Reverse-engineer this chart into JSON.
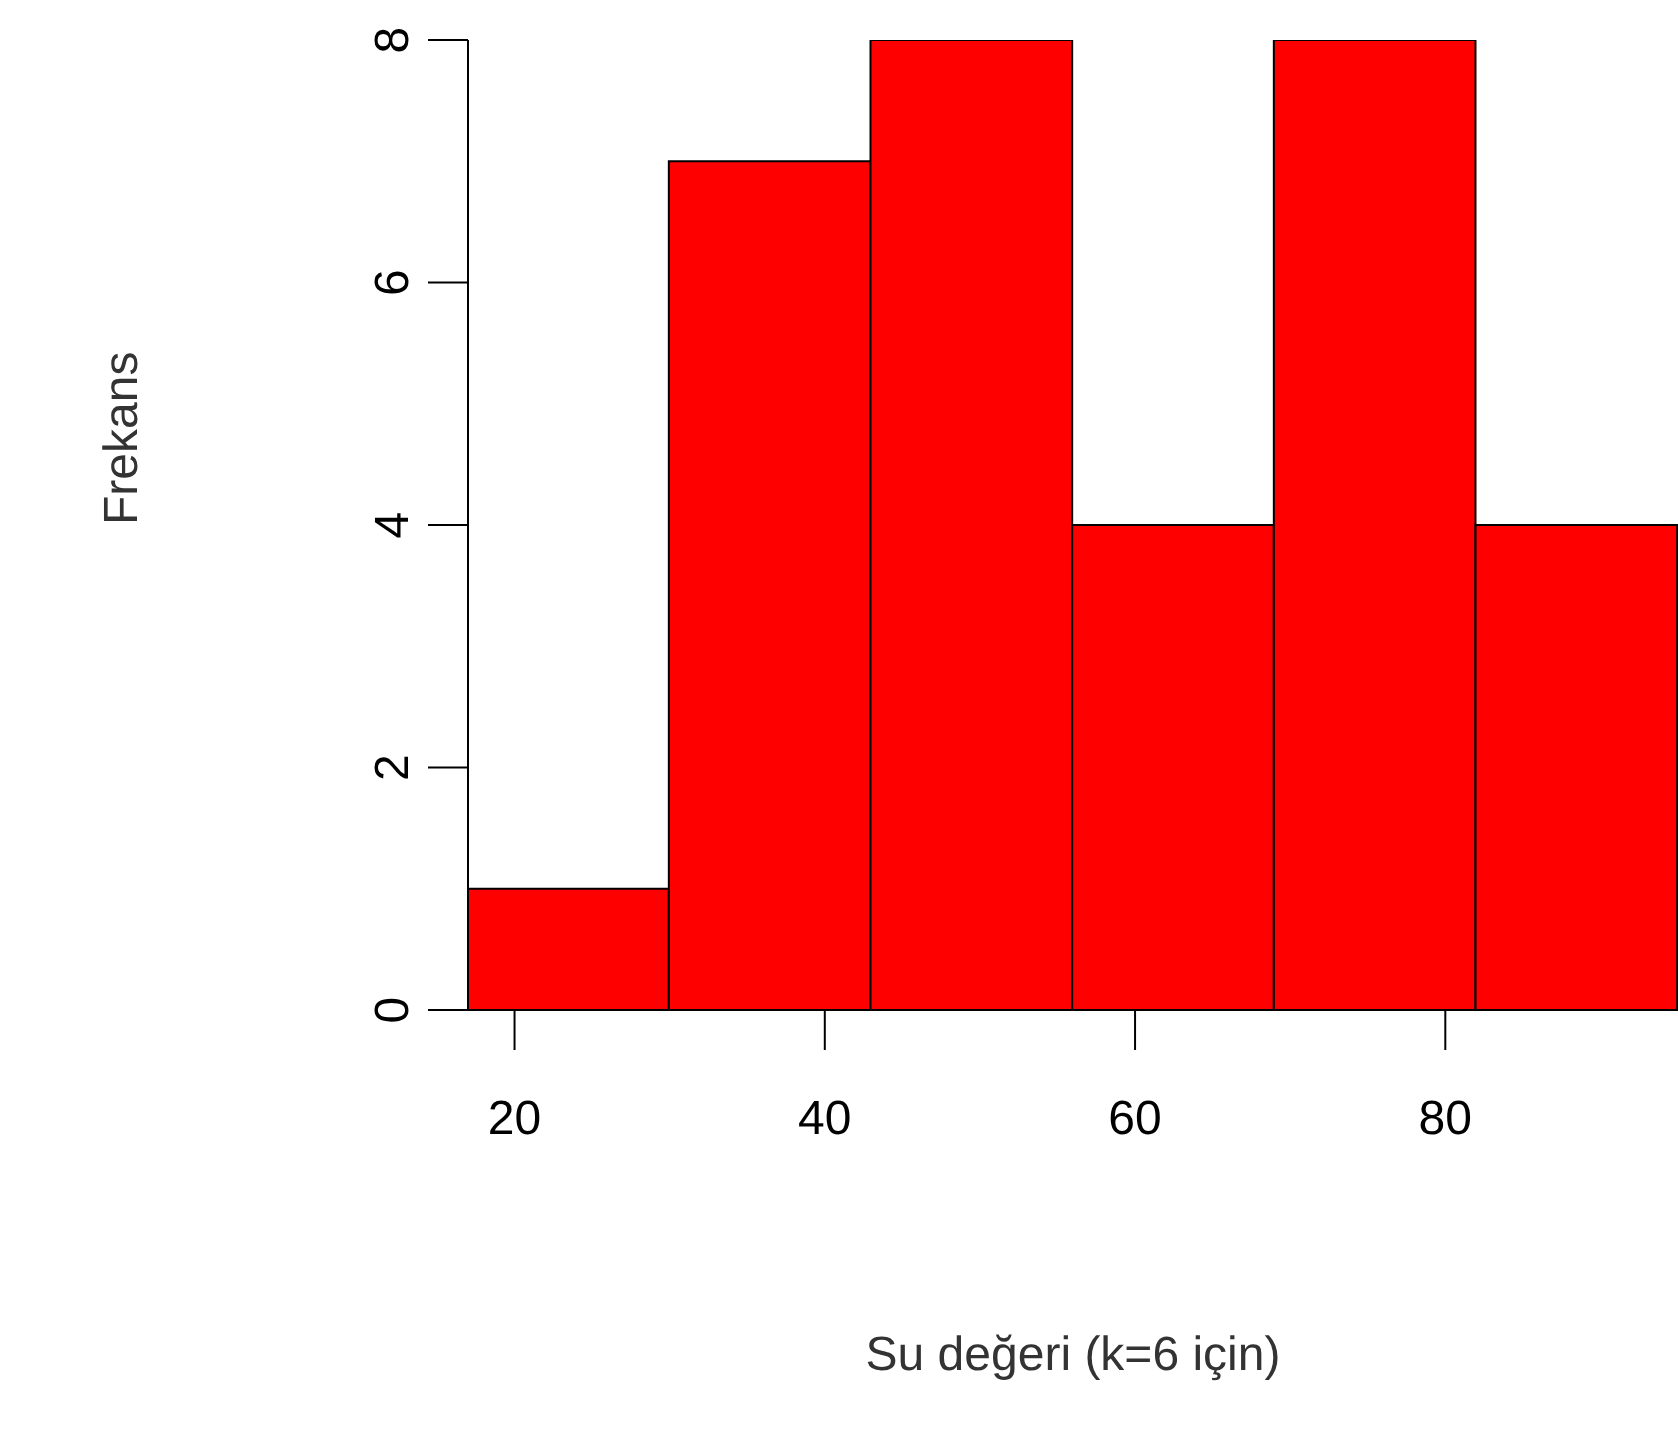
{
  "chart_data": {
    "type": "histogram",
    "xlabel": "Su değeri (k=6 için)",
    "ylabel": "Frekans",
    "bins": [
      17,
      30,
      43,
      56,
      69,
      82,
      95
    ],
    "values": [
      1,
      7,
      8,
      4,
      8,
      4
    ],
    "color": "#ff0000",
    "xlim": [
      17,
      95
    ],
    "xticks": [
      20,
      40,
      60,
      80
    ],
    "ylim": [
      0,
      8
    ],
    "yticks": [
      0,
      2,
      4,
      6,
      8
    ]
  }
}
